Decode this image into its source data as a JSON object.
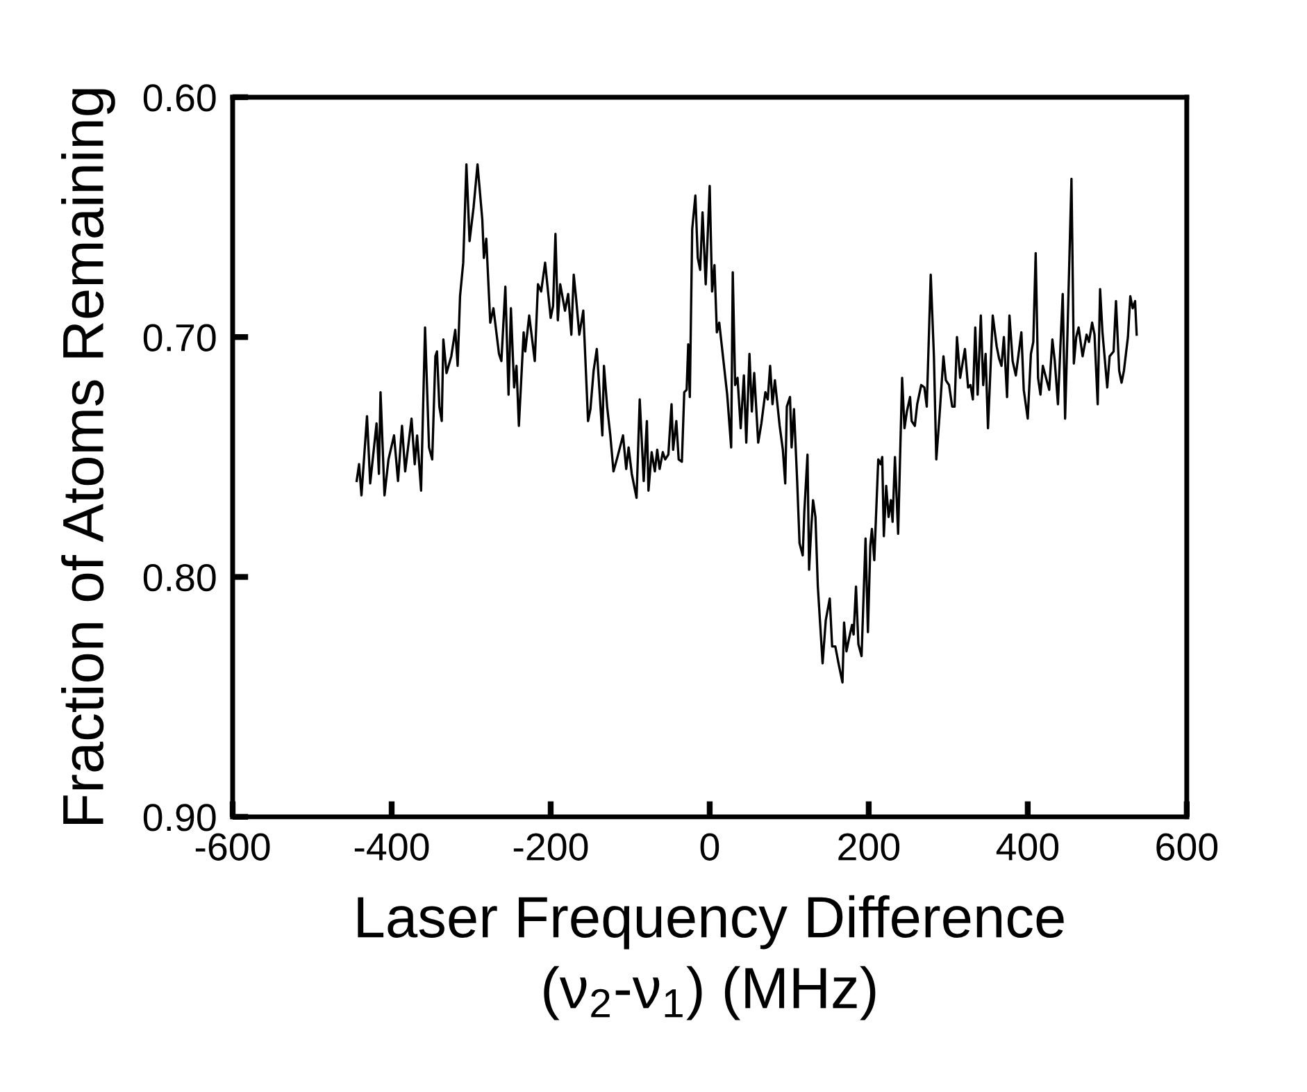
{
  "chart_data": {
    "type": "line",
    "xlabel": "Laser Frequency Difference\n(ν$_{2}$-ν$_{1}$) (MHz)",
    "ylabel": "Fraction of Atoms Remaining",
    "xlim": [
      -600,
      600
    ],
    "xticks": [
      {
        "value": -600,
        "label": "-600"
      },
      {
        "value": -400,
        "label": "-400"
      },
      {
        "value": -200,
        "label": "-200"
      },
      0,
      200,
      400,
      600
    ],
    "ylim": [
      0.9,
      0.6
    ],
    "yticks": [
      {
        "value": 0.9,
        "label": "0.90"
      },
      {
        "value": 0.8,
        "label": "0.80"
      },
      {
        "value": 0.7,
        "label": "0.70"
      },
      {
        "value": 0.6,
        "label": "0.60"
      }
    ],
    "marker": "none",
    "line_style": "solid",
    "series": [
      {
        "color": "#000000",
        "x": [
          -444,
          -441,
          -438,
          -431,
          -427,
          -419,
          -416,
          -414,
          -409,
          -404,
          -397,
          -392,
          -387,
          -383,
          -375,
          -371,
          -368,
          -363,
          -358,
          -353,
          -349,
          -345,
          -343,
          -340,
          -337,
          -335,
          -331,
          -325,
          -320,
          -317,
          -314,
          -310,
          -306,
          -302,
          -297,
          -292,
          -286,
          -284,
          -281,
          -276,
          -272,
          -265,
          -262,
          -257,
          -253,
          -250,
          -246,
          -243,
          -240,
          -234,
          -232,
          -227,
          -220,
          -216,
          -212,
          -207,
          -200,
          -197,
          -194,
          -191,
          -188,
          -182,
          -178,
          -174,
          -171,
          -168,
          -164,
          -159,
          -153,
          -150,
          -146,
          -142,
          -135,
          -133,
          -129,
          -125,
          -121,
          -116,
          -109,
          -105,
          -102,
          -98,
          -92,
          -88,
          -83,
          -79,
          -77,
          -73,
          -69,
          -66,
          -63,
          -59,
          -56,
          -52,
          -48,
          -46,
          -42,
          -39,
          -35,
          -32,
          -29,
          -27,
          -25,
          -22,
          -18,
          -15,
          -12,
          -9,
          -5,
          0,
          3,
          6,
          9,
          12,
          15,
          22,
          27,
          29,
          32,
          35,
          39,
          43,
          46,
          50,
          53,
          56,
          61,
          65,
          70,
          73,
          76,
          79,
          82,
          88,
          92,
          95,
          97,
          101,
          103,
          106,
          110,
          113,
          117,
          119,
          123,
          125,
          128,
          130,
          133,
          136,
          142,
          146,
          151,
          154,
          158,
          162,
          167,
          169,
          172,
          175,
          179,
          181,
          184,
          187,
          191,
          196,
          199,
          202,
          204,
          207,
          212,
          215,
          217,
          219,
          222,
          225,
          228,
          230,
          233,
          237,
          242,
          245,
          248,
          252,
          254,
          258,
          261,
          266,
          270,
          273,
          278,
          282,
          285,
          289,
          294,
          297,
          301,
          305,
          308,
          311,
          315,
          321,
          325,
          328,
          331,
          334,
          337,
          341,
          344,
          347,
          350,
          356,
          361,
          364,
          367,
          370,
          374,
          377,
          381,
          385,
          392,
          395,
          400,
          404,
          407,
          410,
          413,
          416,
          419,
          427,
          431,
          434,
          438,
          442,
          444,
          447,
          450,
          455,
          458,
          461,
          464,
          469,
          474,
          477,
          481,
          484,
          488,
          491,
          494,
          500,
          503,
          508,
          511,
          515,
          518,
          521,
          526,
          529,
          532,
          535,
          537
        ],
        "values": [
          0.76,
          0.753,
          0.766,
          0.733,
          0.761,
          0.736,
          0.757,
          0.723,
          0.766,
          0.751,
          0.741,
          0.76,
          0.737,
          0.756,
          0.734,
          0.753,
          0.741,
          0.764,
          0.696,
          0.746,
          0.751,
          0.708,
          0.706,
          0.729,
          0.735,
          0.701,
          0.715,
          0.708,
          0.697,
          0.712,
          0.683,
          0.669,
          0.628,
          0.66,
          0.646,
          0.628,
          0.651,
          0.667,
          0.659,
          0.694,
          0.688,
          0.707,
          0.71,
          0.679,
          0.724,
          0.688,
          0.721,
          0.712,
          0.737,
          0.698,
          0.706,
          0.691,
          0.71,
          0.678,
          0.681,
          0.669,
          0.692,
          0.687,
          0.657,
          0.693,
          0.678,
          0.689,
          0.682,
          0.699,
          0.674,
          0.684,
          0.699,
          0.689,
          0.735,
          0.73,
          0.714,
          0.705,
          0.741,
          0.712,
          0.729,
          0.741,
          0.756,
          0.75,
          0.741,
          0.755,
          0.746,
          0.757,
          0.767,
          0.726,
          0.76,
          0.735,
          0.764,
          0.748,
          0.756,
          0.747,
          0.755,
          0.748,
          0.751,
          0.749,
          0.728,
          0.747,
          0.735,
          0.751,
          0.752,
          0.723,
          0.722,
          0.703,
          0.725,
          0.655,
          0.641,
          0.667,
          0.672,
          0.648,
          0.678,
          0.637,
          0.681,
          0.67,
          0.698,
          0.694,
          0.703,
          0.724,
          0.746,
          0.673,
          0.72,
          0.717,
          0.738,
          0.716,
          0.744,
          0.707,
          0.731,
          0.715,
          0.744,
          0.736,
          0.723,
          0.726,
          0.712,
          0.728,
          0.718,
          0.737,
          0.747,
          0.761,
          0.729,
          0.725,
          0.746,
          0.73,
          0.76,
          0.786,
          0.791,
          0.773,
          0.749,
          0.797,
          0.778,
          0.768,
          0.775,
          0.804,
          0.836,
          0.818,
          0.809,
          0.829,
          0.829,
          0.836,
          0.844,
          0.819,
          0.831,
          0.826,
          0.82,
          0.824,
          0.804,
          0.828,
          0.833,
          0.784,
          0.823,
          0.787,
          0.78,
          0.793,
          0.751,
          0.753,
          0.75,
          0.783,
          0.762,
          0.775,
          0.768,
          0.777,
          0.75,
          0.782,
          0.717,
          0.738,
          0.731,
          0.725,
          0.735,
          0.737,
          0.728,
          0.72,
          0.721,
          0.729,
          0.674,
          0.708,
          0.751,
          0.733,
          0.708,
          0.718,
          0.72,
          0.729,
          0.729,
          0.7,
          0.717,
          0.705,
          0.721,
          0.72,
          0.726,
          0.696,
          0.724,
          0.691,
          0.72,
          0.707,
          0.738,
          0.691,
          0.704,
          0.709,
          0.712,
          0.7,
          0.725,
          0.691,
          0.71,
          0.716,
          0.698,
          0.722,
          0.734,
          0.707,
          0.702,
          0.665,
          0.717,
          0.724,
          0.712,
          0.722,
          0.701,
          0.71,
          0.728,
          0.697,
          0.682,
          0.734,
          0.698,
          0.634,
          0.711,
          0.7,
          0.696,
          0.708,
          0.699,
          0.702,
          0.694,
          0.699,
          0.728,
          0.68,
          0.698,
          0.721,
          0.708,
          0.706,
          0.685,
          0.714,
          0.719,
          0.714,
          0.7,
          0.683,
          0.688,
          0.685,
          0.699
        ]
      }
    ]
  }
}
